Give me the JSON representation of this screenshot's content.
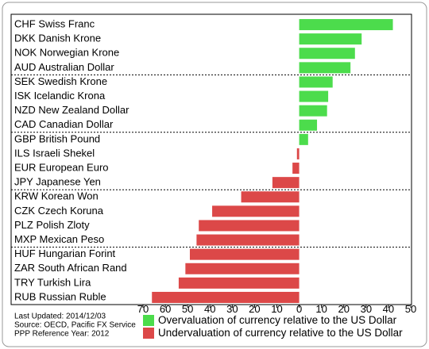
{
  "chart_data": {
    "type": "bar",
    "categories": [
      "CHF Swiss Franc",
      "DKK Danish Krone",
      "NOK Norwegian Krone",
      "AUD Australian Dollar",
      "SEK Swedish Krone",
      "ISK Icelandic Krona",
      "NZD New Zealand Dollar",
      "CAD Canadian Dollar",
      "GBP British Pound",
      "ILS Israeli Shekel",
      "EUR European Euro",
      "JPY Japanese Yen",
      "KRW Korean Won",
      "CZK Czech Koruna",
      "PLZ Polish Zloty",
      "MXP Mexican Peso",
      "HUF Hungarian Forint",
      "ZAR South African Rand",
      "TRY Turkish Lira",
      "RUB Russian Ruble"
    ],
    "series": [
      {
        "name": "Overvaluation of currency relative to the US Dollar",
        "color": "#4cdc4c",
        "values": [
          42,
          28,
          25,
          23,
          15,
          13,
          12.5,
          8,
          4,
          null,
          null,
          null,
          null,
          null,
          null,
          null,
          null,
          null,
          null,
          null
        ]
      },
      {
        "name": "Undervaluation of currency relative to the US Dollar",
        "color": "#dc4848",
        "values": [
          null,
          null,
          null,
          null,
          null,
          null,
          null,
          null,
          null,
          -1,
          -3,
          -12,
          -26,
          -39,
          -45,
          -46,
          -49,
          -51,
          -54,
          -66
        ]
      }
    ],
    "xlim": [
      -70,
      50
    ],
    "xticks": [
      {
        "value": -70,
        "label": "70"
      },
      {
        "value": -60,
        "label": "60"
      },
      {
        "value": -50,
        "label": "50"
      },
      {
        "value": -40,
        "label": "40"
      },
      {
        "value": -30,
        "label": "30"
      },
      {
        "value": -20,
        "label": "20"
      },
      {
        "value": -10,
        "label": "10"
      },
      0,
      10,
      20,
      30,
      40,
      50
    ],
    "notes": [
      "Last Updated: 2014/12/03",
      "Source: OECD, Pacific FX Service",
      "PPP Reference Year: 2012"
    ]
  }
}
